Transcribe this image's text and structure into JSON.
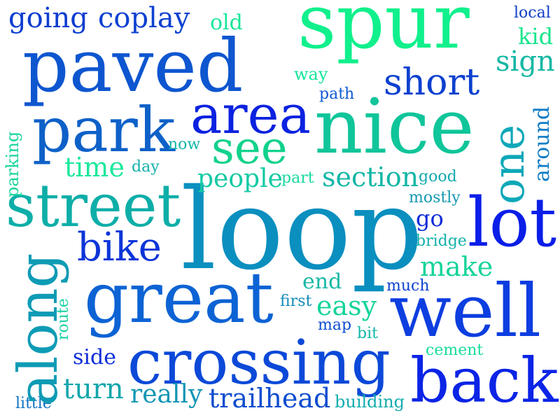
{
  "word_cloud": {
    "words": [
      {
        "text": "loop",
        "color": "#0a8fbf"
      },
      {
        "text": "spur",
        "color": "#10f08c"
      },
      {
        "text": "paved",
        "color": "#0e56d0"
      },
      {
        "text": "nice",
        "color": "#0fc59a"
      },
      {
        "text": "great",
        "color": "#0d63d4"
      },
      {
        "text": "well",
        "color": "#0d3ee0"
      },
      {
        "text": "along",
        "color": "#0e9bb5"
      },
      {
        "text": "crossing",
        "color": "#0c49d8"
      },
      {
        "text": "back",
        "color": "#0b24e6"
      },
      {
        "text": "area",
        "color": "#0b22e0"
      },
      {
        "text": "park",
        "color": "#0e61c8"
      },
      {
        "text": "street",
        "color": "#0eaea8"
      },
      {
        "text": "lot",
        "color": "#0a1ee8"
      },
      {
        "text": "one",
        "color": "#0ea8b8"
      },
      {
        "text": "see",
        "color": "#11d28c"
      },
      {
        "text": "bike",
        "color": "#0c35d8"
      },
      {
        "text": "short",
        "color": "#0c40cf"
      },
      {
        "text": "going",
        "color": "#0e3dd0"
      },
      {
        "text": "coplay",
        "color": "#0d42d0"
      },
      {
        "text": "old",
        "color": "#18e698"
      },
      {
        "text": "local",
        "color": "#0f3ec8"
      },
      {
        "text": "kid",
        "color": "#18e48c"
      },
      {
        "text": "sign",
        "color": "#14b8a4"
      },
      {
        "text": "way",
        "color": "#16e69a"
      },
      {
        "text": "path",
        "color": "#0f5ad4"
      },
      {
        "text": "now",
        "color": "#12b6a6"
      },
      {
        "text": "time",
        "color": "#19e89b"
      },
      {
        "text": "day",
        "color": "#12b0aa"
      },
      {
        "text": "around",
        "color": "#0f7cc6"
      },
      {
        "text": "parking",
        "color": "#18d49c"
      },
      {
        "text": "people",
        "color": "#15caa4"
      },
      {
        "text": "part",
        "color": "#18d8a0"
      },
      {
        "text": "section",
        "color": "#12b6a6"
      },
      {
        "text": "good",
        "color": "#12a8ac"
      },
      {
        "text": "mostly",
        "color": "#1598b0"
      },
      {
        "text": "go",
        "color": "#0d2ad8"
      },
      {
        "text": "bridge",
        "color": "#12b0aa"
      },
      {
        "text": "make",
        "color": "#16d49a"
      },
      {
        "text": "end",
        "color": "#16b8a6"
      },
      {
        "text": "much",
        "color": "#0e44cc"
      },
      {
        "text": "first",
        "color": "#128ab8"
      },
      {
        "text": "easy",
        "color": "#14d49a"
      },
      {
        "text": "route",
        "color": "#17d0a0"
      },
      {
        "text": "map",
        "color": "#0e4ed0"
      },
      {
        "text": "bit",
        "color": "#12b6a6"
      },
      {
        "text": "side",
        "color": "#0c2fd8"
      },
      {
        "text": "cement",
        "color": "#17dc9c"
      },
      {
        "text": "turn",
        "color": "#12a6ac"
      },
      {
        "text": "really",
        "color": "#1396b4"
      },
      {
        "text": "trailhead",
        "color": "#0e4cd0"
      },
      {
        "text": "building",
        "color": "#12acae"
      },
      {
        "text": "little",
        "color": "#0f72c4"
      }
    ]
  }
}
